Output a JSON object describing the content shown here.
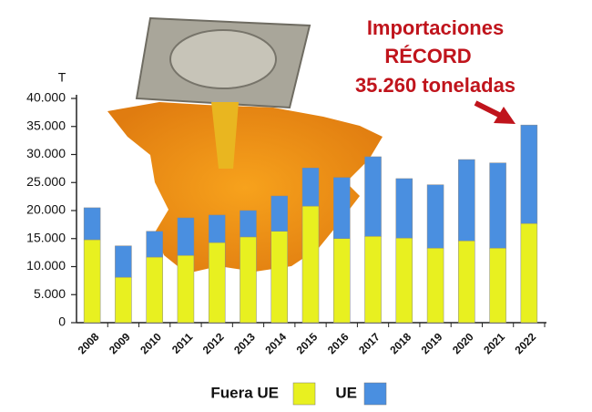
{
  "chart_data": {
    "type": "stacked_bar",
    "y_label": "T",
    "annotation": [
      "Importaciones",
      "RÉCORD",
      "35.260 toneladas"
    ],
    "categories": [
      "2008",
      "2009",
      "2010",
      "2011",
      "2012",
      "2013",
      "2014",
      "2015",
      "2016",
      "2017",
      "2018",
      "2019",
      "2020",
      "2021",
      "2022"
    ],
    "series": [
      {
        "name": "Fuera UE",
        "color": "#e8f020",
        "values": [
          14800,
          8100,
          11700,
          12000,
          14300,
          15300,
          16300,
          20800,
          15000,
          15400,
          15100,
          13300,
          14600,
          13300,
          17700
        ]
      },
      {
        "name": "UE",
        "color": "#4a8fe0",
        "values": [
          5700,
          5600,
          4600,
          6700,
          4900,
          4700,
          6300,
          6800,
          10900,
          14200,
          10600,
          11300,
          14500,
          15200,
          17560
        ]
      }
    ],
    "ylim": [
      0,
      40000
    ],
    "yticks": [
      0,
      {
        "value": 5000,
        "label": "5.000"
      },
      {
        "value": 10000,
        "label": "10.000"
      },
      {
        "value": 15000,
        "label": "15.000"
      },
      {
        "value": 20000,
        "label": "20.000"
      },
      {
        "value": 25000,
        "label": "25.000"
      },
      {
        "value": 30000,
        "label": "30.000"
      },
      {
        "value": 35000,
        "label": "35.000"
      },
      {
        "value": 40000,
        "label": "40.000"
      }
    ]
  }
}
